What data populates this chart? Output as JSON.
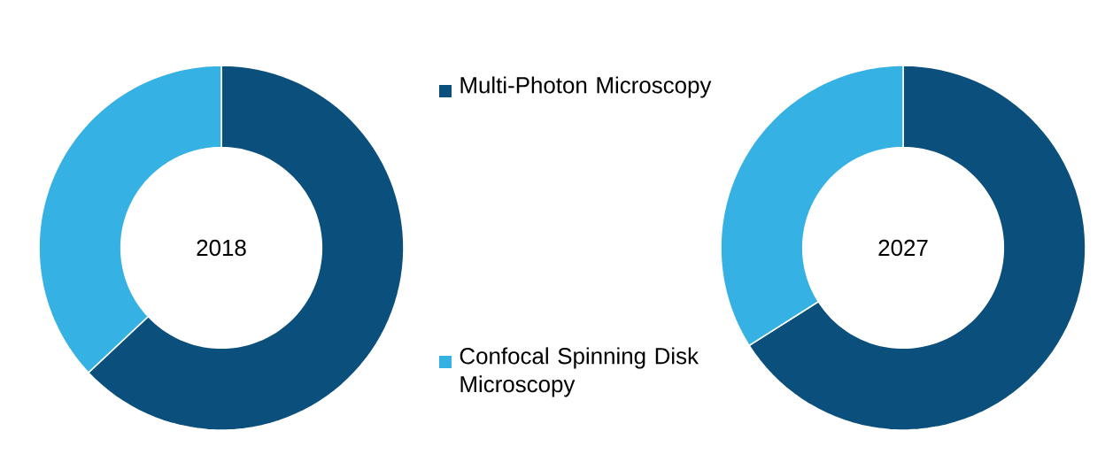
{
  "chart_data": [
    {
      "type": "donut",
      "title": "2018",
      "categories": [
        "Multi-Photon Microscopy",
        "Confocal Spinning Disk Microscopy"
      ],
      "values": [
        63,
        37
      ],
      "colors": [
        "#0b507c",
        "#36b1e4"
      ],
      "legend": "right"
    },
    {
      "type": "donut",
      "title": "2027",
      "categories": [
        null,
        null
      ],
      "values": [
        66,
        34
      ],
      "colors": [
        "#0b507c",
        "#36b1e4"
      ]
    }
  ]
}
